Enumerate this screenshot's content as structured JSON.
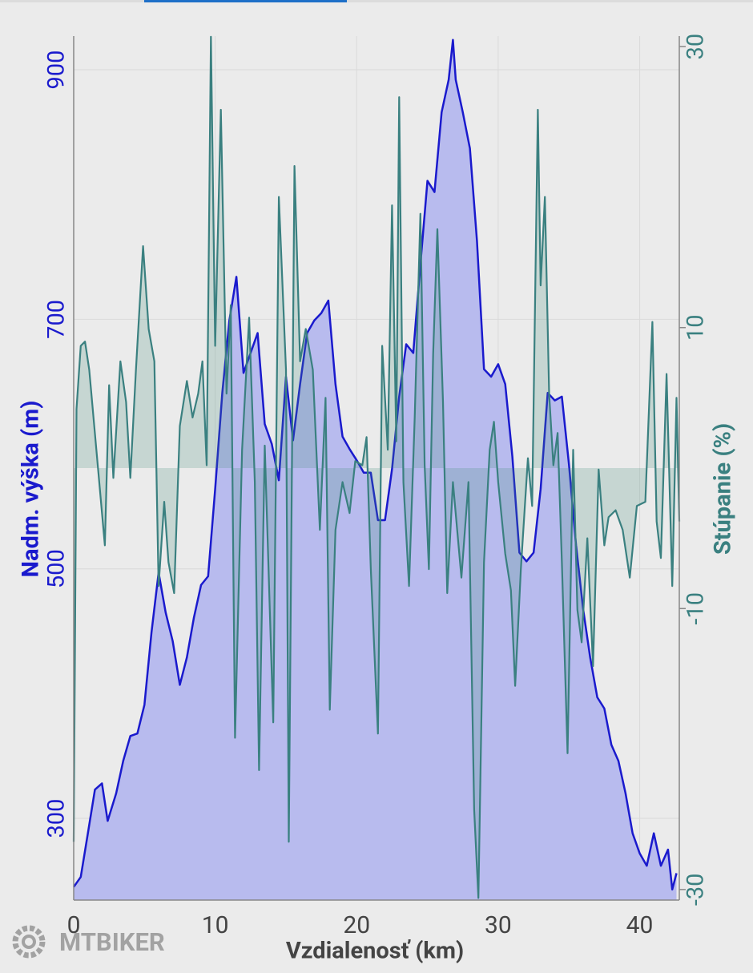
{
  "logo": "MTBIKER",
  "chart_data": {
    "type": "elevation-profile",
    "xlabel": "Vzdialenosť (km)",
    "ylabel": "Nadm. výška (m)",
    "y2label": "Stúpanie (%)",
    "xlim": [
      0,
      42.8
    ],
    "xticks": [
      0,
      10,
      20,
      30,
      40
    ],
    "ylim": [
      234.5,
      927
    ],
    "yticks": [
      300,
      500,
      700,
      900
    ],
    "y2lim": [
      -30.75,
      30.75
    ],
    "y2ticks": [
      -30,
      -10,
      10,
      30
    ],
    "grid": true,
    "series": [
      {
        "color": "#1a1acd",
        "fill": "#b8bbee",
        "axis": "y",
        "x": [
          0,
          0.5,
          1,
          1.5,
          2,
          2.4,
          3,
          3.5,
          4,
          4.5,
          5,
          5.5,
          6,
          6.5,
          7,
          7.5,
          8,
          8.5,
          9,
          9.5,
          10,
          10.5,
          11,
          11.5,
          12,
          12.5,
          13,
          13.5,
          14,
          14.5,
          15,
          15.5,
          16,
          16.5,
          17,
          17.5,
          18,
          18.5,
          19,
          19.5,
          20,
          20.5,
          21,
          21.5,
          22,
          22.5,
          23,
          23.5,
          24,
          24.5,
          25,
          25.5,
          26,
          26.5,
          26.8,
          27,
          27.5,
          28,
          28.5,
          29,
          29.5,
          30,
          30.5,
          31,
          31.5,
          32,
          32.5,
          33,
          33.5,
          34,
          34.5,
          35,
          35.5,
          36,
          36.5,
          37,
          37.5,
          38,
          38.5,
          39,
          39.5,
          40,
          40.5,
          41,
          41.5,
          42,
          42.3,
          42.6
        ],
        "values": [
          245,
          253,
          288,
          323,
          328,
          298,
          320,
          346,
          366,
          368,
          391,
          449,
          497,
          465,
          442,
          407,
          429,
          461,
          487,
          494,
          564,
          641,
          699,
          734,
          657,
          673,
          689,
          616,
          600,
          571,
          654,
          603,
          648,
          689,
          699,
          705,
          715,
          648,
          606,
          596,
          587,
          577,
          577,
          539,
          539,
          580,
          638,
          680,
          673,
          744,
          811,
          802,
          866,
          892,
          924,
          892,
          866,
          837,
          763,
          660,
          654,
          664,
          648,
          590,
          513,
          506,
          513,
          564,
          641,
          635,
          638,
          584,
          519,
          468,
          429,
          397,
          388,
          359,
          346,
          320,
          288,
          272,
          262,
          288,
          262,
          275,
          243,
          256
        ]
      },
      {
        "color": "#3a8080",
        "fill": "rgba(70,140,125,0.22)",
        "axis": "y2",
        "x": [
          0,
          0.2,
          0.5,
          0.8,
          1.1,
          1.6,
          2.2,
          2.5,
          2.8,
          3.3,
          3.7,
          4.0,
          4.4,
          4.9,
          5.3,
          5.7,
          6.0,
          6.4,
          6.7,
          7.1,
          7.5,
          8.0,
          8.4,
          8.8,
          9.1,
          9.4,
          9.7,
          10.0,
          10.4,
          10.8,
          11.1,
          11.4,
          11.9,
          12.4,
          12.8,
          13.1,
          13.5,
          14.1,
          14.5,
          15.0,
          15.2,
          15.6,
          16.0,
          16.4,
          16.9,
          17.4,
          17.8,
          18.1,
          18.5,
          19.0,
          19.5,
          19.9,
          20.4,
          20.7,
          21.0,
          21.5,
          21.8,
          22.2,
          22.5,
          22.8,
          23.0,
          23.3,
          23.7,
          24.1,
          24.5,
          24.8,
          25.1,
          25.4,
          25.7,
          26.1,
          26.4,
          26.8,
          27.4,
          27.9,
          28.3,
          28.6,
          29.0,
          29.4,
          29.7,
          30.0,
          30.5,
          30.9,
          31.2,
          31.6,
          32.1,
          32.4,
          32.8,
          33.0,
          33.3,
          33.6,
          33.9,
          34.2,
          34.5,
          34.9,
          35.3,
          35.6,
          35.9,
          36.3,
          36.7,
          37.1,
          37.5,
          37.8,
          38.3,
          38.8,
          39.3,
          39.8,
          40.4,
          40.9,
          41.2,
          41.5,
          41.9,
          42.3,
          42.6,
          42.8
        ],
        "values": [
          -26.6,
          4.2,
          8.7,
          9.0,
          7.0,
          1.3,
          -5.5,
          5.9,
          -0.7,
          7.6,
          4.7,
          -0.7,
          7.0,
          15.8,
          9.9,
          7.6,
          -8.4,
          -2.4,
          -6.7,
          -8.9,
          3.0,
          6.2,
          3.6,
          5.3,
          7.6,
          0.2,
          30.7,
          8.7,
          25.5,
          5.3,
          11.6,
          -19.2,
          1.3,
          10.7,
          -1.0,
          -21.5,
          1.6,
          -18.1,
          19.3,
          7.0,
          -26.6,
          21.5,
          7.6,
          9.9,
          7.0,
          -4.4,
          5.0,
          -17.2,
          -4.4,
          -1.0,
          -3.2,
          0.5,
          0.2,
          2.2,
          -7.2,
          -18.9,
          8.7,
          1.3,
          18.7,
          1.9,
          26.4,
          -1.0,
          -8.4,
          3.6,
          18.1,
          0.2,
          -7.2,
          8.1,
          17.0,
          4.7,
          -8.9,
          -1.0,
          -7.8,
          -1.0,
          -24.3,
          -30.6,
          -6.7,
          1.3,
          3.3,
          -1.0,
          -6.1,
          -8.7,
          -15.5,
          -7.2,
          0.7,
          -2.7,
          25.5,
          13.0,
          19.3,
          5.3,
          0.2,
          2.5,
          -6.7,
          -20.3,
          1.3,
          -10.1,
          -12.4,
          -5.0,
          -14.1,
          -0.1,
          -5.5,
          -3.5,
          -3.0,
          -4.4,
          -7.8,
          -2.7,
          -2.4,
          10.4,
          -3.8,
          -6.4,
          6.7,
          -8.4,
          5.0,
          -3.8
        ]
      }
    ]
  }
}
